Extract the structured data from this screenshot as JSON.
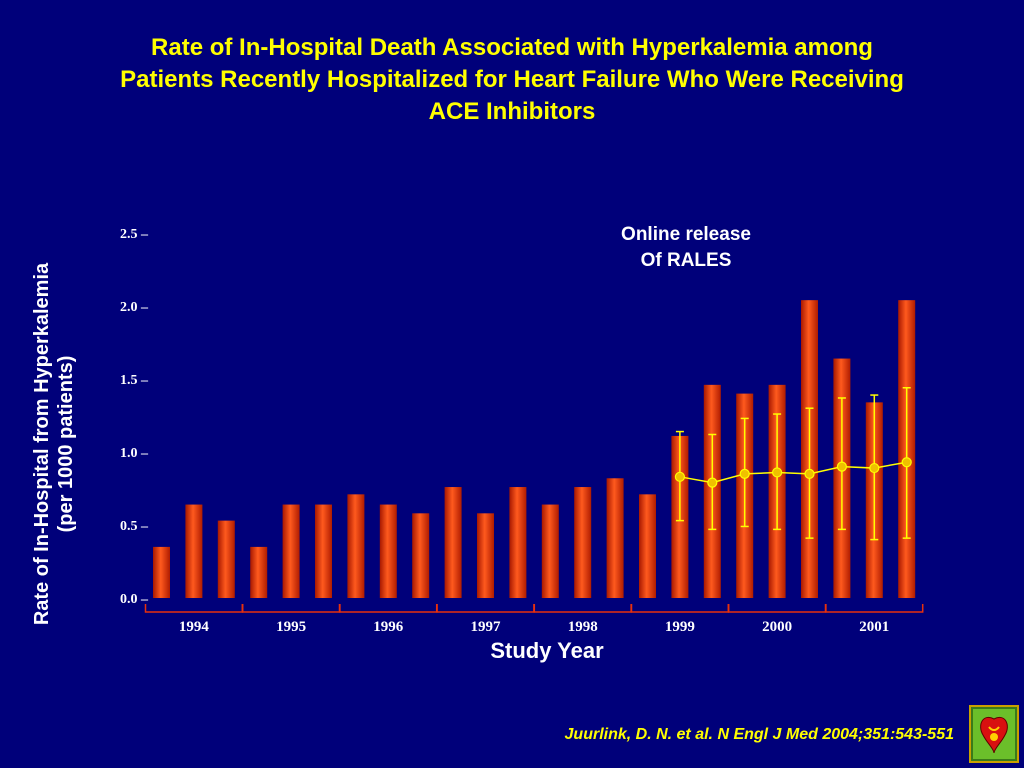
{
  "title": {
    "line1": "Rate of In-Hospital Death Associated with Hyperkalemia among",
    "line2": "Patients Recently Hospitalized for Heart Failure Who Were Receiving",
    "line3": "ACE Inhibitors"
  },
  "annotation": {
    "line1": "Online release",
    "line2": "Of RALES"
  },
  "citation": "Juurlink, D. N. et al. N Engl J Med 2004;351:543-551",
  "logo": {
    "icon": "journal-logo-icon"
  },
  "colors": {
    "background": "#00007a",
    "title": "#ffff00",
    "bar": "#e8300c",
    "line": "#ffff00",
    "text": "#ffffff"
  },
  "chart_data": {
    "type": "bar",
    "ylabel_line1": "Rate of In-Hospital from Hyperkalemia",
    "ylabel_line2": "(per 1000 patients)",
    "xlabel": "Study Year",
    "ylim": [
      0,
      2.5
    ],
    "yticks": [
      "0.0 –",
      "0.5 –",
      "1.0 –",
      "1.5 –",
      "2.0 –",
      "2.5 –"
    ],
    "ytick_values": [
      0.0,
      0.5,
      1.0,
      1.5,
      2.0,
      2.5
    ],
    "grid": false,
    "years": [
      "1994",
      "1995",
      "1996",
      "1997",
      "1998",
      "1999",
      "2000",
      "2001"
    ],
    "bars_per_year": 3,
    "values": [
      0.35,
      0.64,
      0.53,
      0.35,
      0.64,
      0.64,
      0.71,
      0.64,
      0.58,
      0.76,
      0.58,
      0.76,
      0.64,
      0.76,
      0.82,
      0.71,
      1.11,
      1.46,
      1.4,
      1.46,
      2.04,
      1.64,
      1.34,
      2.04
    ],
    "expected": {
      "start_index": 16,
      "values": [
        0.83,
        0.79,
        0.85,
        0.86,
        0.85,
        0.9,
        0.89,
        0.93
      ],
      "lower": [
        0.53,
        0.47,
        0.49,
        0.47,
        0.41,
        0.47,
        0.4,
        0.41
      ],
      "upper": [
        1.14,
        1.12,
        1.23,
        1.26,
        1.3,
        1.37,
        1.39,
        1.44
      ]
    }
  }
}
